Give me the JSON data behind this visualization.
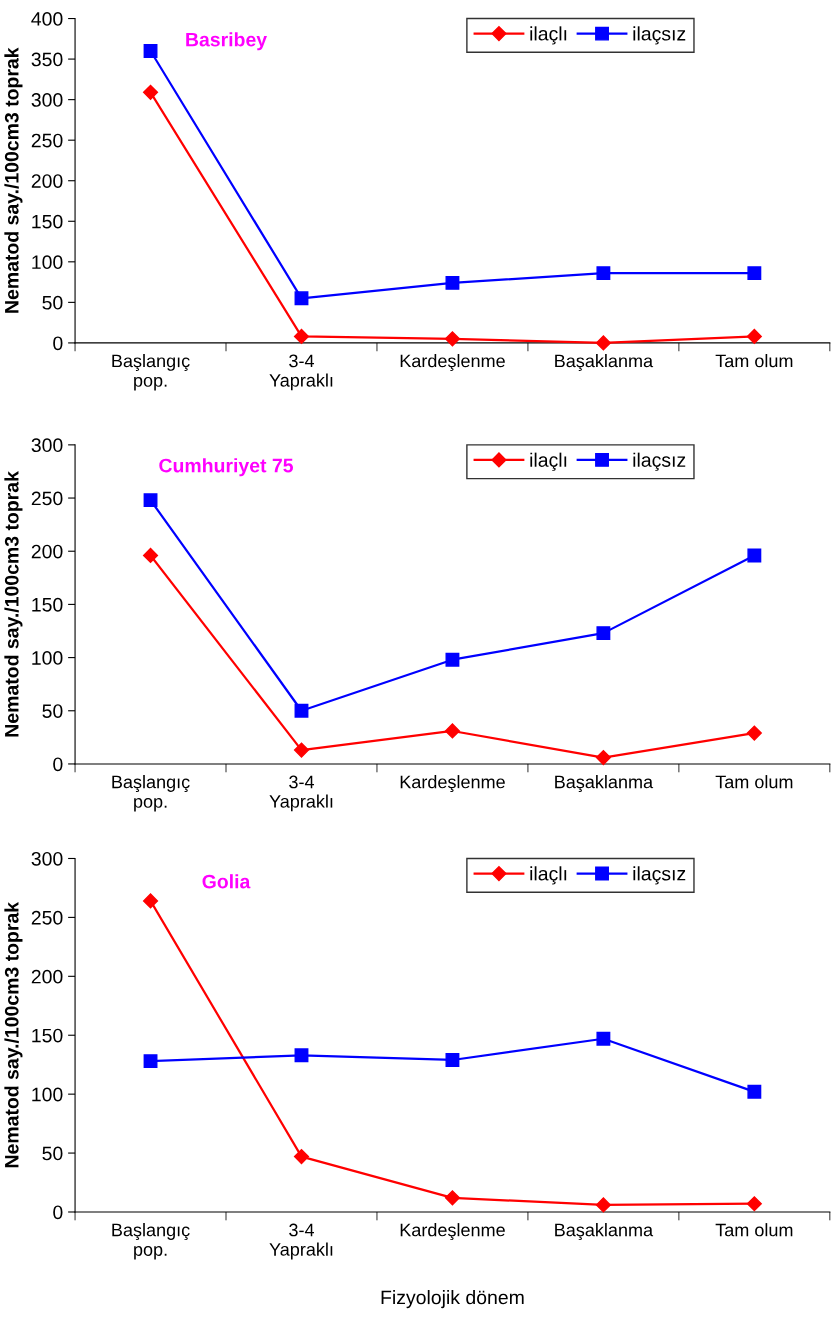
{
  "chart_data": [
    {
      "type": "line",
      "title": "Basribey",
      "ylabel": "Nematod say./100cm3 toprak",
      "categories": [
        "Başlangıç\npop.",
        "3-4\nYapraklı",
        "Kardeşlenme",
        "Başaklanma",
        "Tam olum"
      ],
      "ylim": [
        0,
        400
      ],
      "yticks": [
        0,
        50,
        100,
        150,
        200,
        250,
        300,
        350,
        400
      ],
      "grid": false,
      "legend": "top right",
      "series": [
        {
          "name": "ilaçlı",
          "color": "#ff0000",
          "marker": "diamond",
          "values": [
            309,
            8,
            5,
            0,
            8
          ]
        },
        {
          "name": "ilaçsız",
          "color": "#0000ff",
          "marker": "square",
          "values": [
            360,
            55,
            74,
            86,
            86
          ]
        }
      ]
    },
    {
      "type": "line",
      "title": "Cumhuriyet 75",
      "ylabel": "Nematod say./100cm3 toprak",
      "categories": [
        "Başlangıç\npop.",
        "3-4\nYapraklı",
        "Kardeşlenme",
        "Başaklanma",
        "Tam olum"
      ],
      "ylim": [
        0,
        300
      ],
      "yticks": [
        0,
        50,
        100,
        150,
        200,
        250,
        300
      ],
      "grid": false,
      "legend": "top right",
      "series": [
        {
          "name": "ilaçlı",
          "color": "#ff0000",
          "marker": "diamond",
          "values": [
            196,
            13,
            31,
            6,
            29
          ]
        },
        {
          "name": "ilaçsız",
          "color": "#0000ff",
          "marker": "square",
          "values": [
            248,
            50,
            98,
            123,
            196
          ]
        }
      ]
    },
    {
      "type": "line",
      "title": "Golia",
      "ylabel": "Nematod say./100cm3 toprak",
      "xlabel": "Fizyolojik dönem",
      "categories": [
        "Başlangıç\npop.",
        "3-4\nYapraklı",
        "Kardeşlenme",
        "Başaklanma",
        "Tam olum"
      ],
      "ylim": [
        0,
        300
      ],
      "yticks": [
        0,
        50,
        100,
        150,
        200,
        250,
        300
      ],
      "grid": false,
      "legend": "top right",
      "series": [
        {
          "name": "ilaçlı",
          "color": "#ff0000",
          "marker": "diamond",
          "values": [
            264,
            47,
            12,
            6,
            7
          ]
        },
        {
          "name": "ilaçsız",
          "color": "#0000ff",
          "marker": "square",
          "values": [
            128,
            133,
            129,
            147,
            102
          ]
        }
      ]
    }
  ]
}
